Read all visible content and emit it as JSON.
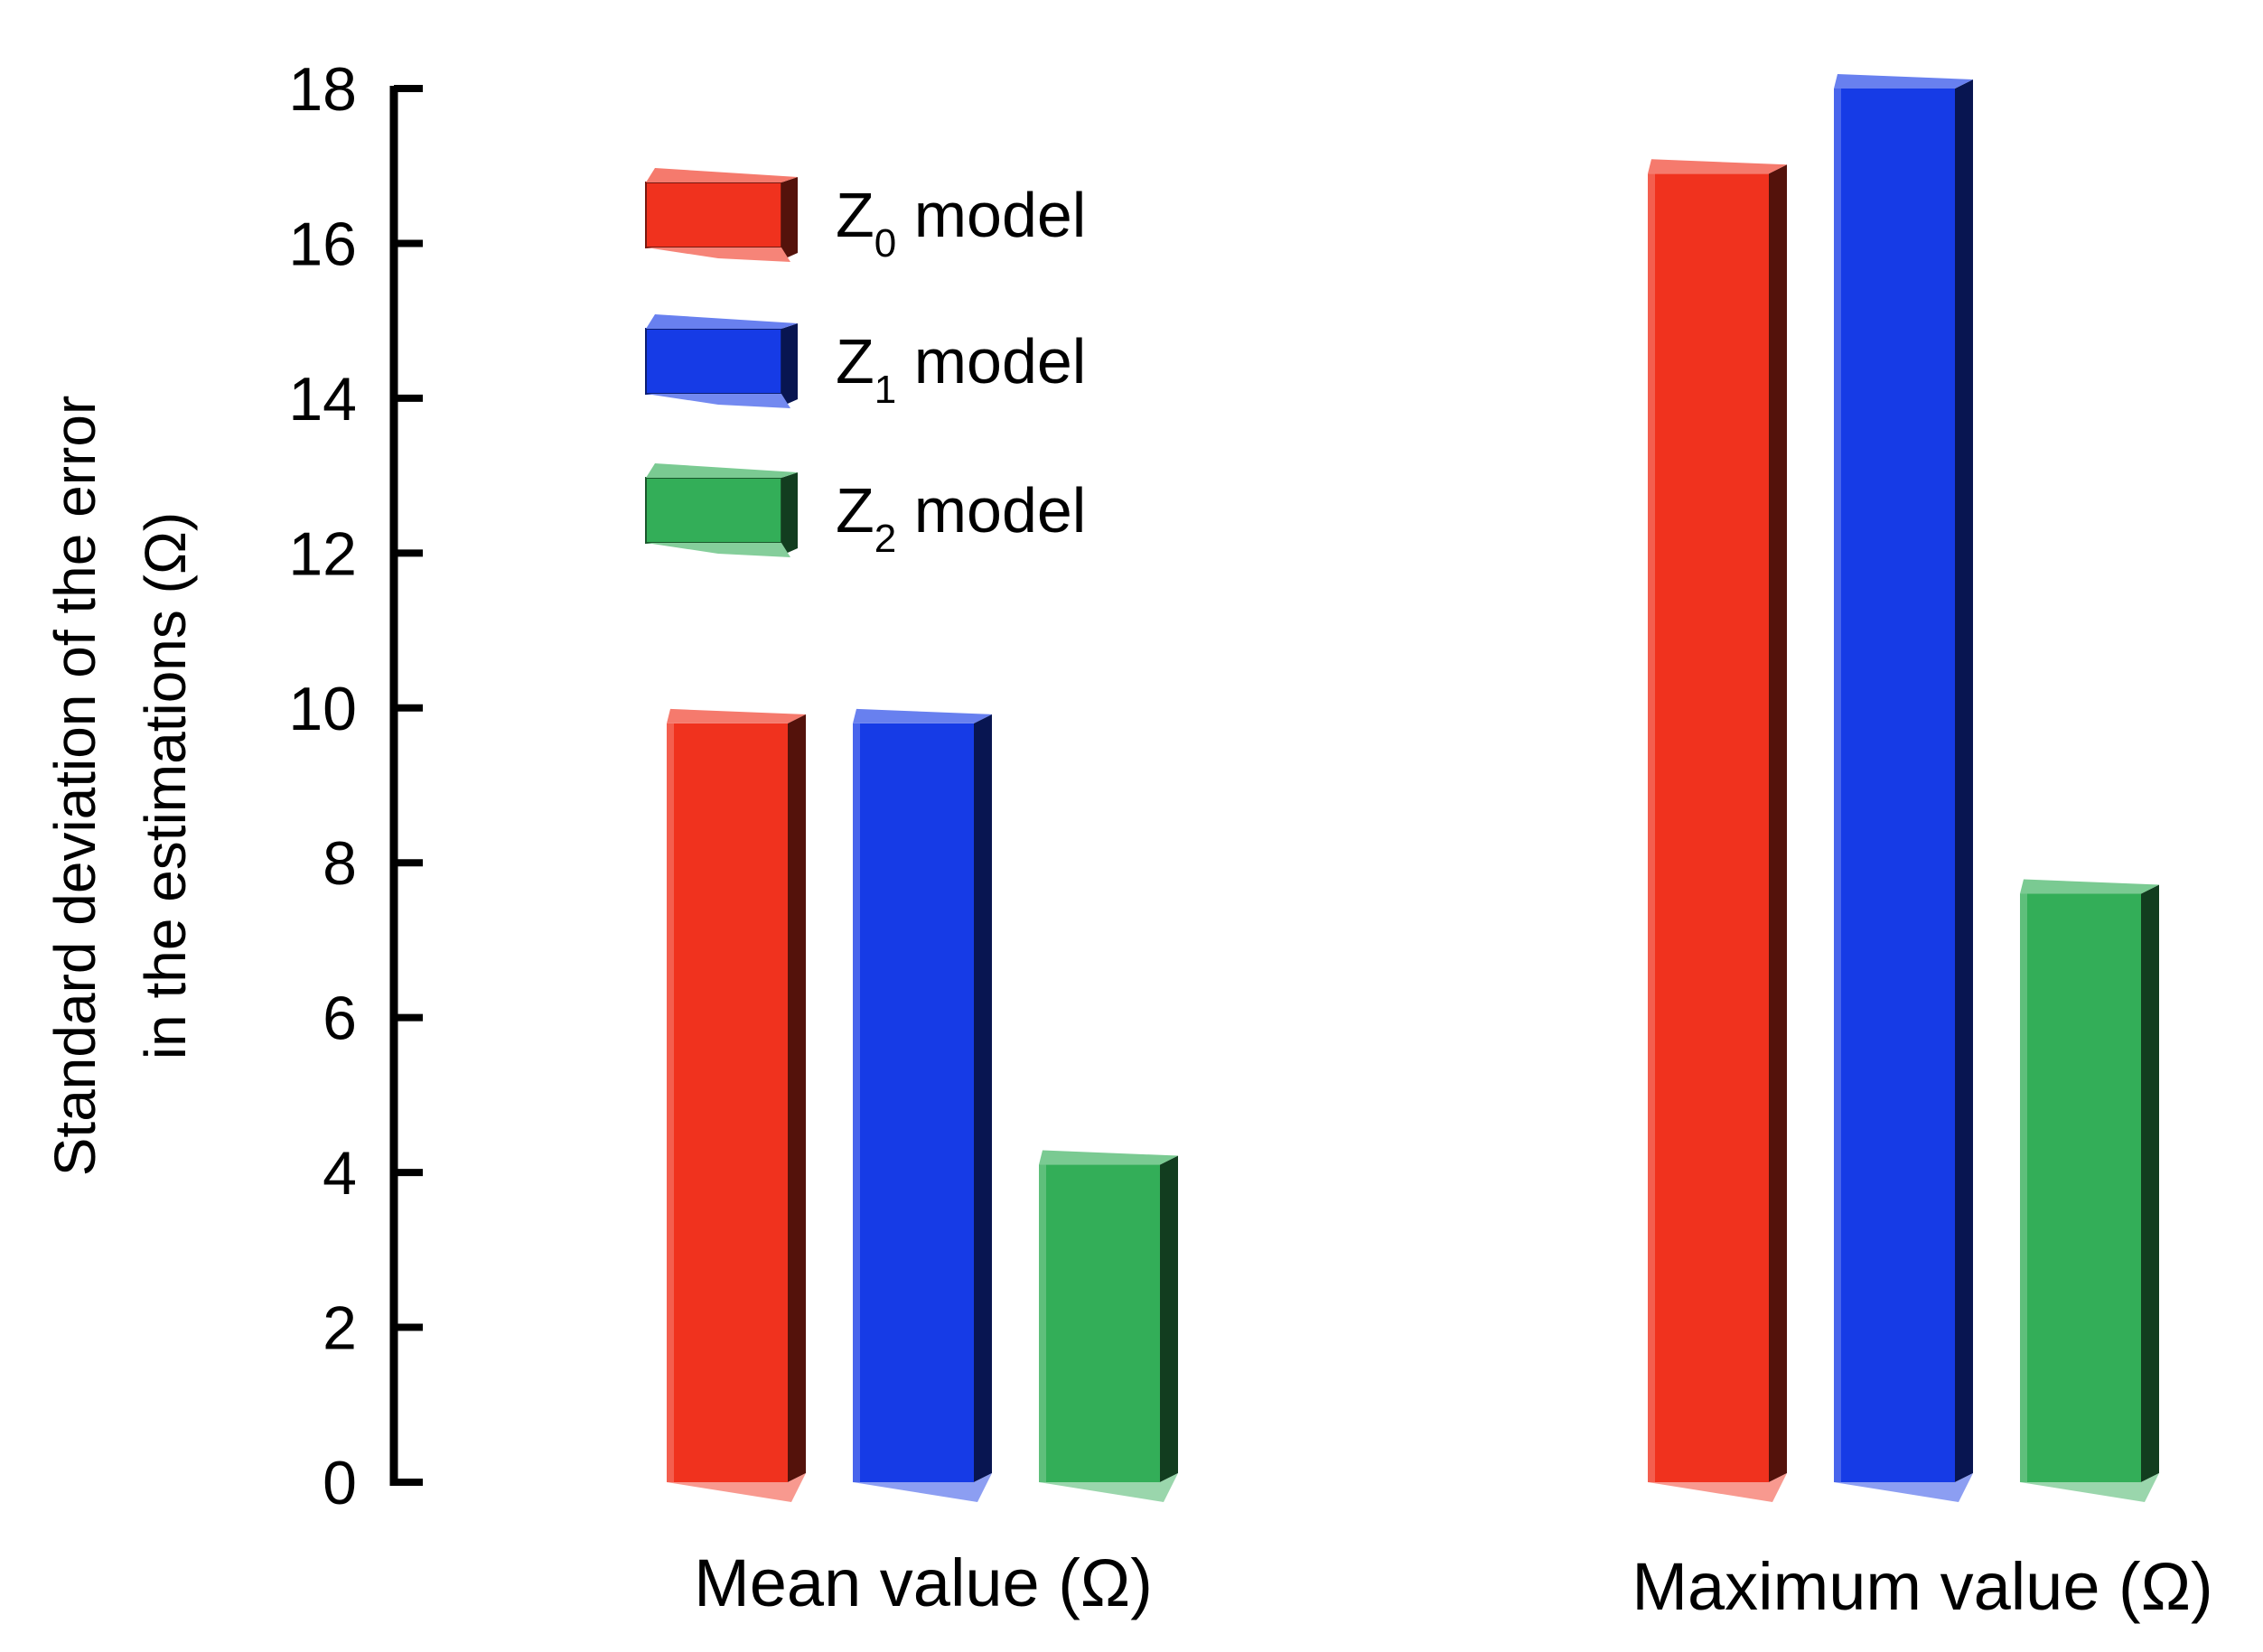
{
  "chart_data": {
    "type": "bar",
    "title": "",
    "xlabel": "",
    "ylabel_lines": [
      "Standard deviation of the error",
      "in the estimations (Ω)"
    ],
    "ylim": [
      0,
      18
    ],
    "yticks": [
      0,
      2,
      4,
      6,
      8,
      10,
      12,
      14,
      16,
      18
    ],
    "categories": [
      "Mean value (Ω)",
      "Maximum value (Ω)"
    ],
    "series": [
      {
        "name": "Z0 model",
        "base": "Z",
        "sub": "0",
        "suffix": " model",
        "color": "#f0321e",
        "values": [
          9.8,
          16.9
        ]
      },
      {
        "name": "Z1 model",
        "base": "Z",
        "sub": "1",
        "suffix": " model",
        "color": "#163be6",
        "values": [
          9.8,
          18.0
        ]
      },
      {
        "name": "Z2 model",
        "base": "Z",
        "sub": "2",
        "suffix": " model",
        "color": "#33ae58",
        "values": [
          4.1,
          7.6
        ]
      }
    ],
    "legend_position": "top-left",
    "grid": false
  }
}
